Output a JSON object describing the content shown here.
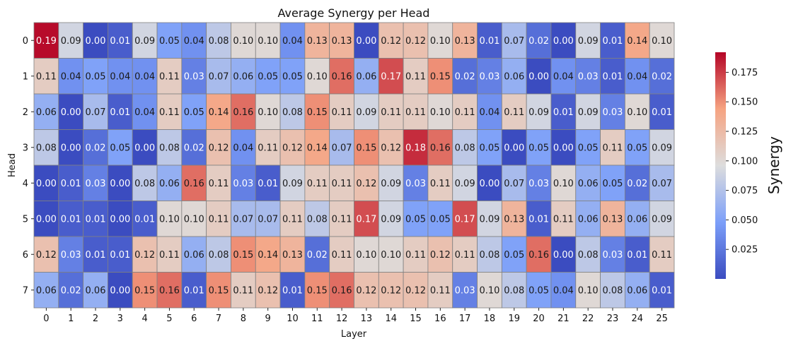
{
  "chart_data": {
    "type": "heatmap",
    "title": "Average Synergy per Head",
    "xlabel": "Layer",
    "ylabel": "Head",
    "colorbar_label": "Synergy",
    "colormap": "coolwarm",
    "x_ticks": [
      "0",
      "1",
      "2",
      "3",
      "4",
      "5",
      "6",
      "7",
      "8",
      "9",
      "10",
      "11",
      "12",
      "13",
      "14",
      "15",
      "16",
      "17",
      "18",
      "19",
      "20",
      "21",
      "22",
      "23",
      "24",
      "25"
    ],
    "y_ticks": [
      "0",
      "1",
      "2",
      "3",
      "4",
      "5",
      "6",
      "7"
    ],
    "vmin": 0.0,
    "vmax": 0.192,
    "colorbar_ticks": [
      0.025,
      0.05,
      0.075,
      0.1,
      0.125,
      0.15,
      0.175
    ],
    "colorbar_tick_labels": [
      "0.025",
      "0.050",
      "0.075",
      "0.100",
      "0.125",
      "0.150",
      "0.175"
    ],
    "values": [
      [
        0.19,
        0.09,
        0.0,
        0.01,
        0.09,
        0.05,
        0.04,
        0.08,
        0.1,
        0.1,
        0.04,
        0.13,
        0.13,
        0.0,
        0.12,
        0.12,
        0.1,
        0.13,
        0.01,
        0.07,
        0.02,
        0.0,
        0.09,
        0.01,
        0.14,
        0.1
      ],
      [
        0.11,
        0.04,
        0.05,
        0.04,
        0.04,
        0.11,
        0.03,
        0.07,
        0.06,
        0.05,
        0.05,
        0.1,
        0.16,
        0.06,
        0.17,
        0.11,
        0.15,
        0.02,
        0.03,
        0.06,
        0.0,
        0.04,
        0.03,
        0.01,
        0.04,
        0.02
      ],
      [
        0.06,
        0.0,
        0.07,
        0.01,
        0.04,
        0.11,
        0.05,
        0.14,
        0.16,
        0.1,
        0.08,
        0.15,
        0.11,
        0.09,
        0.11,
        0.11,
        0.1,
        0.11,
        0.04,
        0.11,
        0.09,
        0.01,
        0.09,
        0.03,
        0.1,
        0.01
      ],
      [
        0.08,
        0.0,
        0.02,
        0.05,
        0.0,
        0.08,
        0.02,
        0.12,
        0.04,
        0.11,
        0.12,
        0.14,
        0.07,
        0.15,
        0.12,
        0.18,
        0.16,
        0.08,
        0.05,
        0.0,
        0.05,
        0.0,
        0.05,
        0.11,
        0.05,
        0.09
      ],
      [
        0.0,
        0.01,
        0.03,
        0.0,
        0.08,
        0.06,
        0.16,
        0.11,
        0.03,
        0.01,
        0.09,
        0.11,
        0.11,
        0.12,
        0.09,
        0.03,
        0.11,
        0.09,
        0.0,
        0.07,
        0.03,
        0.1,
        0.06,
        0.05,
        0.02,
        0.07
      ],
      [
        0.0,
        0.01,
        0.01,
        0.0,
        0.01,
        0.1,
        0.1,
        0.11,
        0.07,
        0.07,
        0.11,
        0.08,
        0.11,
        0.17,
        0.09,
        0.05,
        0.05,
        0.17,
        0.09,
        0.13,
        0.01,
        0.11,
        0.06,
        0.13,
        0.06,
        0.09
      ],
      [
        0.12,
        0.03,
        0.01,
        0.01,
        0.12,
        0.11,
        0.06,
        0.08,
        0.15,
        0.14,
        0.13,
        0.02,
        0.11,
        0.1,
        0.1,
        0.11,
        0.12,
        0.11,
        0.08,
        0.05,
        0.16,
        0.0,
        0.08,
        0.03,
        0.01,
        0.11
      ],
      [
        0.06,
        0.02,
        0.06,
        0.0,
        0.15,
        0.16,
        0.01,
        0.15,
        0.11,
        0.12,
        0.01,
        0.15,
        0.16,
        0.12,
        0.12,
        0.12,
        0.11,
        0.03,
        0.1,
        0.08,
        0.05,
        0.04,
        0.1,
        0.08,
        0.06,
        0.01
      ]
    ]
  }
}
